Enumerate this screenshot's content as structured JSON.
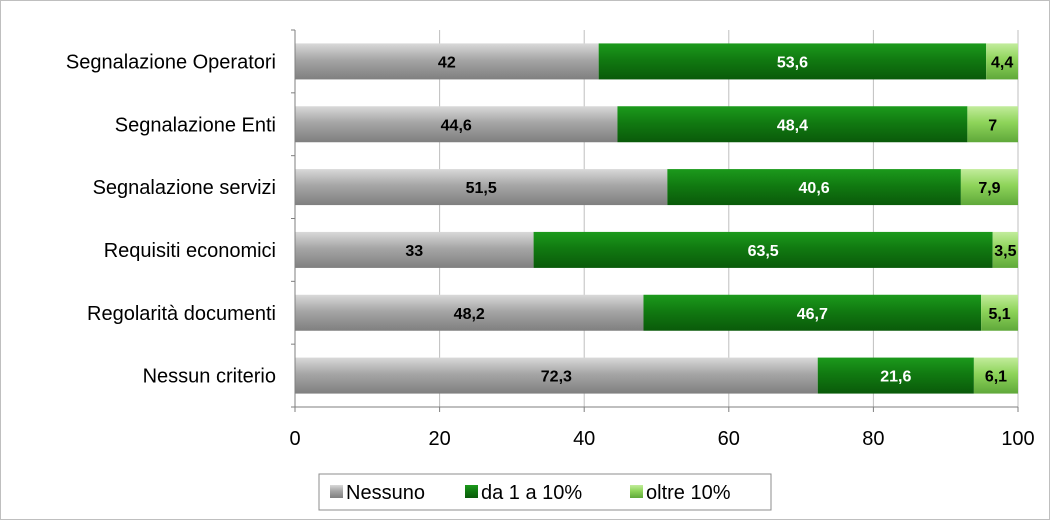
{
  "chart_data": {
    "type": "bar",
    "orientation": "horizontal",
    "stacked": true,
    "categories": [
      "Segnalazione Operatori",
      "Segnalazione  Enti",
      "Segnalazione servizi",
      "Requisiti economici",
      "Regolarità documenti",
      "Nessun criterio"
    ],
    "series": [
      {
        "name": "Nessuno",
        "values": [
          42,
          44.6,
          51.5,
          33,
          48.2,
          72.3
        ],
        "labels": [
          "42",
          "44,6",
          "51,5",
          "33",
          "48,2",
          "72,3"
        ],
        "color": "#a6a6a6",
        "label_color": "#000000"
      },
      {
        "name": "da 1 a 10%",
        "values": [
          53.6,
          48.4,
          40.6,
          63.5,
          46.7,
          21.6
        ],
        "labels": [
          "53,6",
          "48,4",
          "40,6",
          "63,5",
          "46,7",
          "21,6"
        ],
        "color": "#117a11",
        "label_color": "#ffffff"
      },
      {
        "name": "oltre 10%",
        "values": [
          4.4,
          7,
          7.9,
          3.5,
          5.1,
          6.1
        ],
        "labels": [
          "4,4",
          "7",
          "7,9",
          "3,5",
          "5,1",
          "6,1"
        ],
        "color": "#8ed45a",
        "label_color": "#000000"
      }
    ],
    "xlim": [
      0,
      100
    ],
    "xticks": [
      0,
      20,
      40,
      60,
      80,
      100
    ],
    "grid": true,
    "legend": "bottom",
    "title": "",
    "xlabel": "",
    "ylabel": ""
  }
}
